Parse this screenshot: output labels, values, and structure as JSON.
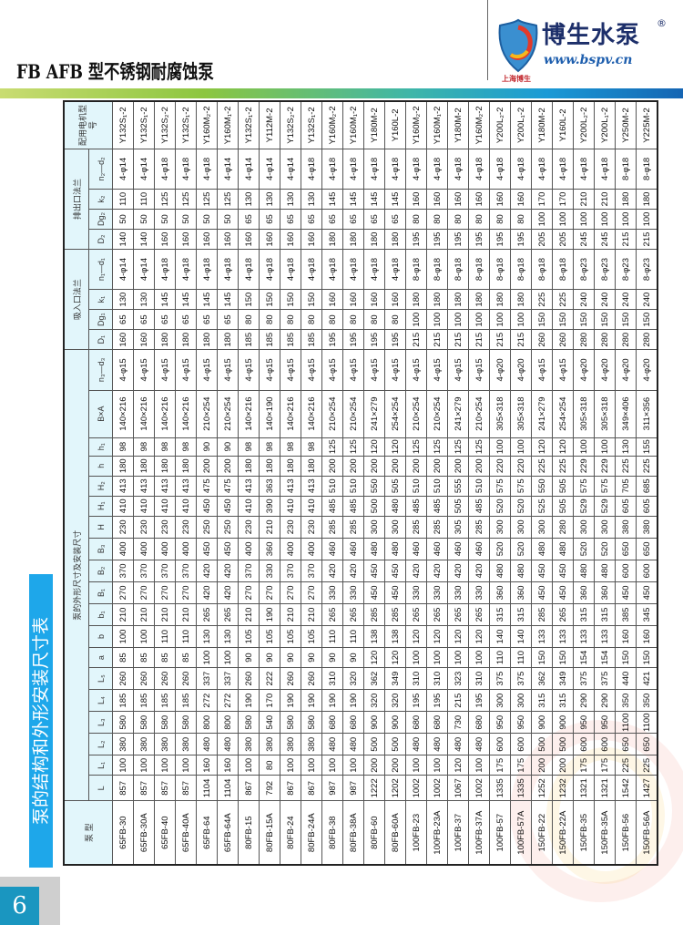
{
  "header": {
    "title": "FB AFB 型不锈钢耐腐蚀泵",
    "logo": {
      "name": "博生水泵",
      "registered": "®",
      "url": "www.bspv.cn",
      "subtitle": "上海博生"
    }
  },
  "section_title": "泵的结构和外形安装尺寸表",
  "page_number": "6",
  "colors": {
    "accent_blue": "#1ea7ea",
    "header_bg": "#e2f6fb",
    "brand_navy": "#1d2f6a"
  },
  "table": {
    "group_headers": {
      "model": "泵 型",
      "dimensions": "泵的外形尺寸及安装尺寸",
      "inlet_flange": "吸入口法兰",
      "outlet_flange": "排出口法兰",
      "motor": "配用电机型号"
    },
    "columns": [
      "L",
      "L₁",
      "L₂",
      "L₃",
      "L₄",
      "L₅",
      "a",
      "b",
      "b₁",
      "B₁",
      "B₂",
      "B₃",
      "H",
      "H₁",
      "H₂",
      "h",
      "h₁",
      "B×A",
      "n₃—d₃",
      "D₁",
      "Dg₁",
      "k₁",
      "n₁—d₁",
      "D₂",
      "Dg₂",
      "k₂",
      "n₂—d₂"
    ],
    "rows": [
      [
        "65FB-30",
        "857",
        "100",
        "380",
        "580",
        "185",
        "260",
        "85",
        "100",
        "210",
        "270",
        "370",
        "400",
        "230",
        "410",
        "413",
        "180",
        "98",
        "140×216",
        "4-φ15",
        "160",
        "65",
        "130",
        "4-φ14",
        "140",
        "50",
        "110",
        "4-φ14",
        "Y132S₁-2"
      ],
      [
        "65FB-30A",
        "857",
        "100",
        "380",
        "580",
        "185",
        "260",
        "85",
        "100",
        "210",
        "270",
        "370",
        "400",
        "230",
        "410",
        "413",
        "180",
        "98",
        "140×216",
        "4-φ15",
        "160",
        "65",
        "130",
        "4-φ14",
        "140",
        "50",
        "110",
        "4-φ14",
        "Y132S₁-2"
      ],
      [
        "65FB-40",
        "857",
        "100",
        "380",
        "580",
        "185",
        "260",
        "85",
        "110",
        "210",
        "270",
        "370",
        "400",
        "230",
        "410",
        "413",
        "180",
        "98",
        "140×216",
        "4-φ15",
        "180",
        "65",
        "145",
        "4-φ18",
        "160",
        "50",
        "125",
        "4-φ18",
        "Y132S₂-2"
      ],
      [
        "65FB-40A",
        "857",
        "100",
        "380",
        "580",
        "185",
        "260",
        "85",
        "110",
        "210",
        "270",
        "370",
        "400",
        "230",
        "410",
        "413",
        "180",
        "98",
        "140×216",
        "4-φ15",
        "180",
        "65",
        "145",
        "4-φ18",
        "160",
        "50",
        "125",
        "4-φ18",
        "Y132S₁-2"
      ],
      [
        "65FB-64",
        "1104",
        "160",
        "480",
        "800",
        "272",
        "337",
        "100",
        "130",
        "265",
        "420",
        "420",
        "450",
        "250",
        "450",
        "475",
        "200",
        "90",
        "210×254",
        "4-φ15",
        "180",
        "65",
        "145",
        "4-φ18",
        "160",
        "50",
        "125",
        "4-φ18",
        "Y160M₂-2"
      ],
      [
        "65FB-64A",
        "1104",
        "160",
        "480",
        "800",
        "272",
        "337",
        "100",
        "130",
        "265",
        "420",
        "420",
        "450",
        "250",
        "450",
        "475",
        "200",
        "90",
        "210×254",
        "4-φ15",
        "180",
        "65",
        "145",
        "4-φ18",
        "160",
        "50",
        "125",
        "4-φ14",
        "Y160M₁-2"
      ],
      [
        "80FB-15",
        "867",
        "100",
        "380",
        "580",
        "190",
        "260",
        "90",
        "105",
        "210",
        "270",
        "370",
        "400",
        "230",
        "410",
        "413",
        "180",
        "98",
        "140×216",
        "4-φ15",
        "185",
        "80",
        "150",
        "4-φ18",
        "160",
        "65",
        "130",
        "4-φ14",
        "Y132S₁-2"
      ],
      [
        "80FB-15A",
        "792",
        "80",
        "380",
        "540",
        "170",
        "222",
        "90",
        "105",
        "190",
        "270",
        "330",
        "360",
        "210",
        "390",
        "363",
        "180",
        "98",
        "140×190",
        "4-φ15",
        "185",
        "80",
        "150",
        "4-φ18",
        "160",
        "65",
        "130",
        "4-φ14",
        "Y112M-2"
      ],
      [
        "80FB-24",
        "867",
        "100",
        "380",
        "580",
        "190",
        "260",
        "90",
        "105",
        "210",
        "270",
        "370",
        "400",
        "230",
        "410",
        "413",
        "180",
        "98",
        "140×216",
        "4-φ15",
        "185",
        "80",
        "150",
        "4-φ18",
        "160",
        "65",
        "130",
        "4-φ14",
        "Y132S₂-2"
      ],
      [
        "80FB-24A",
        "867",
        "100",
        "380",
        "580",
        "190",
        "260",
        "90",
        "105",
        "210",
        "270",
        "370",
        "400",
        "230",
        "410",
        "413",
        "180",
        "98",
        "140×216",
        "4-φ15",
        "185",
        "80",
        "150",
        "4-φ18",
        "160",
        "65",
        "130",
        "4-φ18",
        "Y132S₁-2"
      ],
      [
        "80FB-38",
        "987",
        "100",
        "480",
        "680",
        "190",
        "310",
        "90",
        "110",
        "265",
        "330",
        "420",
        "460",
        "285",
        "485",
        "510",
        "200",
        "125",
        "210×254",
        "4-φ15",
        "195",
        "80",
        "160",
        "4-φ18",
        "180",
        "65",
        "145",
        "4-φ18",
        "Y160M₂-2"
      ],
      [
        "80FB-38A",
        "987",
        "100",
        "480",
        "680",
        "190",
        "320",
        "90",
        "110",
        "265",
        "330",
        "420",
        "460",
        "285",
        "485",
        "510",
        "200",
        "125",
        "210×254",
        "4-φ15",
        "195",
        "80",
        "160",
        "4-φ18",
        "180",
        "65",
        "145",
        "4-φ18",
        "Y160M₁-2"
      ],
      [
        "80FB-60",
        "1222",
        "200",
        "500",
        "900",
        "320",
        "362",
        "120",
        "138",
        "285",
        "450",
        "450",
        "480",
        "300",
        "500",
        "550",
        "200",
        "120",
        "241×279",
        "4-φ15",
        "195",
        "80",
        "160",
        "4-φ18",
        "180",
        "65",
        "145",
        "4-φ18",
        "Y180M-2"
      ],
      [
        "80FB-60A",
        "1202",
        "200",
        "500",
        "900",
        "320",
        "349",
        "120",
        "138",
        "285",
        "450",
        "450",
        "480",
        "300",
        "480",
        "505",
        "200",
        "120",
        "254×254",
        "4-φ15",
        "195",
        "80",
        "160",
        "4-φ18",
        "180",
        "65",
        "145",
        "4-φ18",
        "Y160L-2"
      ],
      [
        "100FB-23",
        "1002",
        "100",
        "480",
        "680",
        "195",
        "310",
        "100",
        "120",
        "265",
        "330",
        "420",
        "460",
        "285",
        "485",
        "510",
        "200",
        "125",
        "210×254",
        "4-φ15",
        "215",
        "100",
        "180",
        "8-φ18",
        "195",
        "80",
        "160",
        "4-φ18",
        "Y160M₂-2"
      ],
      [
        "100FB-23A",
        "1002",
        "100",
        "480",
        "680",
        "195",
        "310",
        "100",
        "120",
        "265",
        "330",
        "420",
        "460",
        "285",
        "485",
        "510",
        "200",
        "125",
        "210×254",
        "4-φ15",
        "215",
        "100",
        "180",
        "8-φ18",
        "195",
        "80",
        "160",
        "4-φ18",
        "Y160M₁-2"
      ],
      [
        "100FB-37",
        "1067",
        "120",
        "480",
        "730",
        "215",
        "323",
        "100",
        "120",
        "265",
        "330",
        "420",
        "460",
        "305",
        "505",
        "555",
        "200",
        "125",
        "241×279",
        "4-φ15",
        "215",
        "100",
        "180",
        "8-φ18",
        "195",
        "80",
        "160",
        "4-φ18",
        "Y180M-2"
      ],
      [
        "100FB-37A",
        "1002",
        "100",
        "480",
        "680",
        "195",
        "310",
        "100",
        "120",
        "265",
        "330",
        "420",
        "460",
        "285",
        "485",
        "510",
        "200",
        "125",
        "210×254",
        "4-φ15",
        "215",
        "100",
        "180",
        "8-φ18",
        "195",
        "80",
        "160",
        "4-φ18",
        "Y160M₂-2"
      ],
      [
        "100FB-57",
        "1335",
        "175",
        "600",
        "950",
        "300",
        "375",
        "110",
        "140",
        "315",
        "360",
        "480",
        "520",
        "300",
        "520",
        "575",
        "220",
        "100",
        "305×318",
        "4-φ20",
        "215",
        "100",
        "180",
        "8-φ18",
        "195",
        "80",
        "160",
        "4-φ18",
        "Y200L₂-2"
      ],
      [
        "100FB-57A",
        "1335",
        "175",
        "600",
        "950",
        "300",
        "375",
        "110",
        "140",
        "315",
        "360",
        "480",
        "520",
        "300",
        "520",
        "575",
        "220",
        "100",
        "305×318",
        "4-φ20",
        "215",
        "100",
        "180",
        "8-φ18",
        "195",
        "80",
        "160",
        "4-φ18",
        "Y200L₁-2"
      ],
      [
        "150FB-22",
        "1252",
        "200",
        "500",
        "900",
        "315",
        "362",
        "150",
        "133",
        "285",
        "450",
        "450",
        "480",
        "300",
        "525",
        "550",
        "225",
        "120",
        "241×279",
        "4-φ15",
        "260",
        "150",
        "225",
        "8-φ18",
        "205",
        "100",
        "170",
        "4-φ18",
        "Y180M-2"
      ],
      [
        "150FB-22A",
        "1232",
        "200",
        "500",
        "900",
        "315",
        "349",
        "150",
        "133",
        "265",
        "450",
        "450",
        "480",
        "280",
        "505",
        "505",
        "225",
        "120",
        "254×254",
        "4-φ15",
        "260",
        "150",
        "225",
        "8-φ18",
        "205",
        "100",
        "170",
        "4-φ18",
        "Y160L-2"
      ],
      [
        "150FB-35",
        "1321",
        "175",
        "600",
        "950",
        "290",
        "375",
        "154",
        "133",
        "315",
        "360",
        "480",
        "520",
        "300",
        "529",
        "575",
        "229",
        "100",
        "305×318",
        "4-φ20",
        "280",
        "150",
        "240",
        "8-φ23",
        "245",
        "100",
        "210",
        "4-φ18",
        "Y200L₂-2"
      ],
      [
        "150FB-35A",
        "1321",
        "175",
        "600",
        "950",
        "290",
        "375",
        "154",
        "133",
        "315",
        "360",
        "480",
        "520",
        "300",
        "529",
        "575",
        "229",
        "100",
        "305×318",
        "4-φ20",
        "280",
        "150",
        "240",
        "8-φ23",
        "245",
        "100",
        "210",
        "4-φ18",
        "Y200L₁-2"
      ],
      [
        "150FB-56",
        "1542",
        "225",
        "650",
        "1100",
        "350",
        "440",
        "150",
        "160",
        "385",
        "450",
        "600",
        "650",
        "380",
        "605",
        "705",
        "225",
        "130",
        "349×406",
        "4-φ20",
        "280",
        "150",
        "240",
        "8-φ23",
        "215",
        "100",
        "180",
        "8-φ18",
        "Y250M-2"
      ],
      [
        "150FB-56A",
        "1427",
        "225",
        "650",
        "1100",
        "350",
        "421",
        "150",
        "160",
        "345",
        "450",
        "600",
        "650",
        "380",
        "605",
        "685",
        "225",
        "155",
        "311×356",
        "4-φ20",
        "280",
        "150",
        "240",
        "8-φ23",
        "215",
        "100",
        "180",
        "8-φ18",
        "Y225M-2"
      ]
    ]
  }
}
